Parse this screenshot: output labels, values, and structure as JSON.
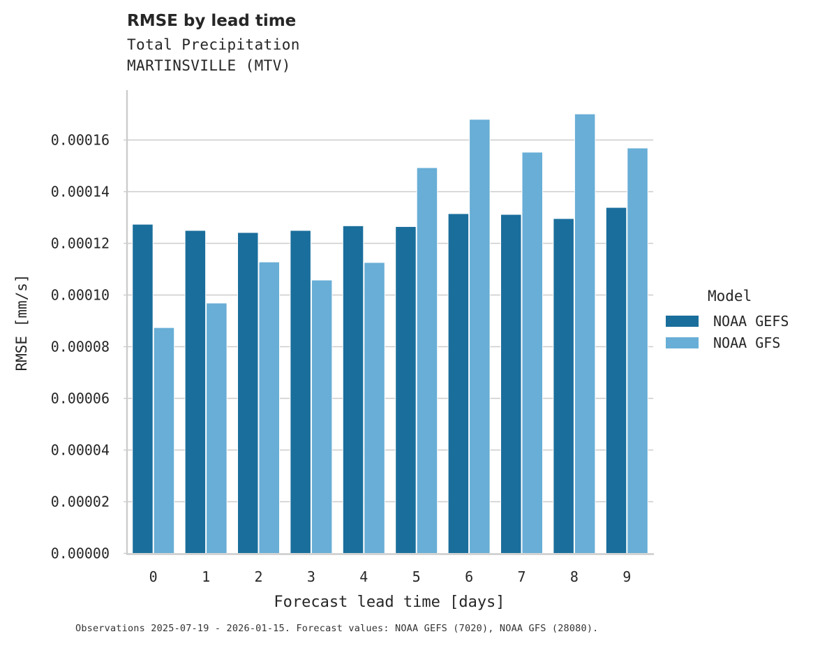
{
  "header": {
    "title": "RMSE by lead time",
    "subtitle_line1": "Total Precipitation",
    "subtitle_line2": "MARTINSVILLE (MTV)"
  },
  "footer": {
    "text": "Observations 2025-07-19 - 2026-01-15. Forecast values: NOAA GEFS (7020), NOAA GFS (28080)."
  },
  "legend": {
    "title": "Model",
    "items": [
      {
        "label": "NOAA GEFS",
        "color": "#1a6e9c"
      },
      {
        "label": "NOAA GFS",
        "color": "#68aed6"
      }
    ]
  },
  "colors": {
    "gefs": "#1a6e9c",
    "gfs": "#68aed6",
    "grid": "#cccccc",
    "axis": "#cccccc",
    "text": "#262626"
  },
  "chart_data": {
    "type": "bar",
    "title": "RMSE by lead time",
    "subtitle": "Total Precipitation — MARTINSVILLE (MTV)",
    "xlabel": "Forecast lead time [days]",
    "ylabel": "RMSE [mm/s]",
    "categories": [
      "0",
      "1",
      "2",
      "3",
      "4",
      "5",
      "6",
      "7",
      "8",
      "9"
    ],
    "series": [
      {
        "name": "NOAA GEFS",
        "color": "#1a6e9c",
        "values": [
          0.0001274,
          0.000125,
          0.0001242,
          0.000125,
          0.0001268,
          0.0001265,
          0.0001315,
          0.0001312,
          0.0001296,
          0.0001339
        ]
      },
      {
        "name": "NOAA GFS",
        "color": "#68aed6",
        "values": [
          8.74e-05,
          9.69e-05,
          0.0001128,
          0.0001058,
          0.0001126,
          0.0001493,
          0.000168,
          0.0001553,
          0.0001701,
          0.0001569
        ]
      }
    ],
    "yticks": [
      "0.00000",
      "0.00002",
      "0.00004",
      "0.00006",
      "0.00008",
      "0.00010",
      "0.00012",
      "0.00014",
      "0.00016"
    ],
    "ylim": [
      0,
      0.000179
    ],
    "grid": "horizontal",
    "legend_position": "right"
  }
}
